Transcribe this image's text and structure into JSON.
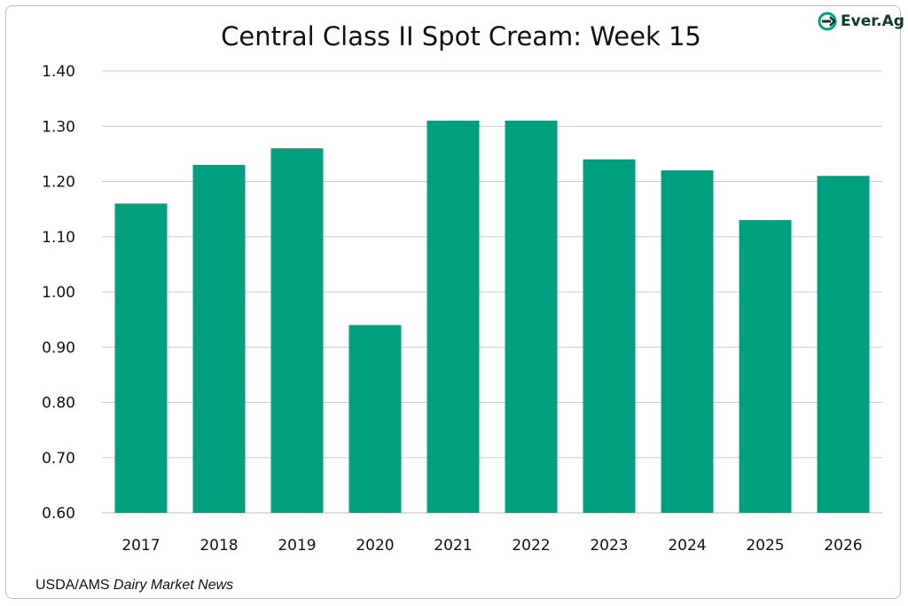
{
  "chart_data": {
    "type": "bar",
    "title": "Central Class II Spot Cream: Week 15",
    "categories": [
      "2017",
      "2018",
      "2019",
      "2020",
      "2021",
      "2022",
      "2023",
      "2024",
      "2025",
      "2026"
    ],
    "values": [
      1.16,
      1.23,
      1.26,
      0.94,
      1.31,
      1.31,
      1.24,
      1.22,
      1.13,
      1.21
    ],
    "ylim": [
      0.6,
      1.4
    ],
    "yticks": [
      "0.60",
      "0.70",
      "0.80",
      "0.90",
      "1.00",
      "1.10",
      "1.20",
      "1.30",
      "1.40"
    ],
    "xlabel": "",
    "ylabel": "",
    "grid": true,
    "bar_color": "#00a07f",
    "grid_color": "#cccccc"
  },
  "logo": {
    "text": "Ever.Ag",
    "color": "#0c3b2e",
    "mark_color": "#00a07f"
  },
  "source": {
    "prefix": "USDA/AMS",
    "publication": "Dairy Market News"
  }
}
